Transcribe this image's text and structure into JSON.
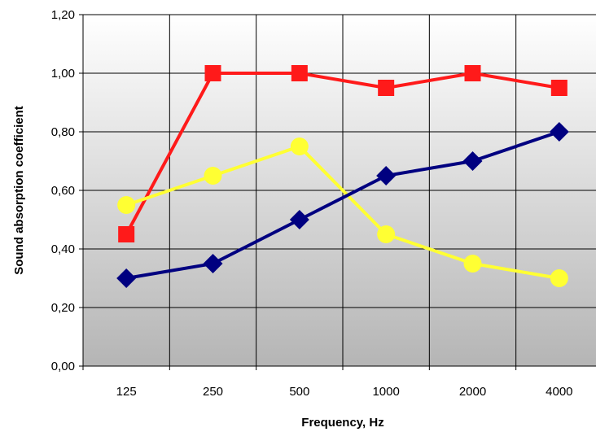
{
  "chart_data": {
    "type": "line",
    "title": "",
    "xlabel": "Frequency, Hz",
    "ylabel": "Sound absorption coefficient",
    "categories": [
      "125",
      "250",
      "500",
      "1000",
      "2000",
      "4000"
    ],
    "ylim": [
      0,
      1.2
    ],
    "yticks": [
      "0,00",
      "0,20",
      "0,40",
      "0,60",
      "0,80",
      "1,00",
      "1,20"
    ],
    "grid": true,
    "legend": "none",
    "series": [
      {
        "color": "#ff1a1a",
        "marker": "square",
        "values": [
          0.45,
          1.0,
          1.0,
          0.95,
          1.0,
          0.95
        ]
      },
      {
        "color": "#ffff33",
        "marker": "circle",
        "values": [
          0.55,
          0.65,
          0.75,
          0.45,
          0.35,
          0.3
        ]
      },
      {
        "color": "#000080",
        "marker": "diamond",
        "values": [
          0.3,
          0.35,
          0.5,
          0.65,
          0.7,
          0.8
        ]
      }
    ]
  }
}
